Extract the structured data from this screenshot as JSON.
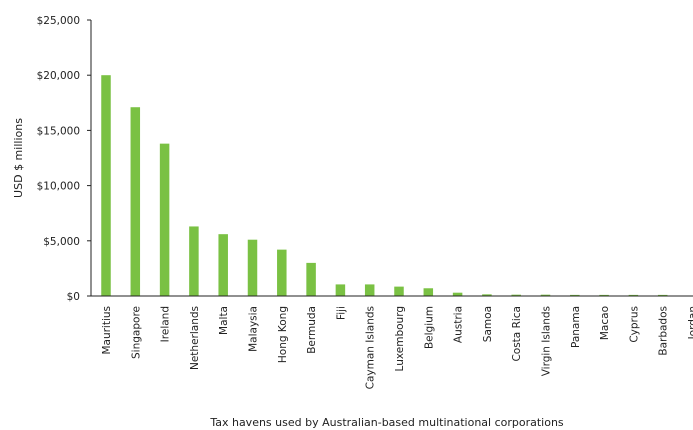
{
  "chart_data": {
    "type": "bar",
    "title": "",
    "xlabel": "Tax havens used by Australian-based multinational corporations",
    "ylabel": "USD $ millions",
    "ylim": [
      0,
      25000
    ],
    "y_ticks": [
      0,
      5000,
      10000,
      15000,
      20000,
      25000
    ],
    "y_tick_labels": [
      "$0",
      "$5,000",
      "$10,000",
      "$15,000",
      "$20,000",
      "$25,000"
    ],
    "grid": false,
    "legend": "none",
    "bar_color": "#7ac143",
    "axis_color": "#222222",
    "categories": [
      "Mauritius",
      "Singapore",
      "Ireland",
      "Netherlands",
      "Malta",
      "Malaysia",
      "Hong Kong",
      "Bermuda",
      "Fiji",
      "Cayman Islands",
      "Luxembourg",
      "Belgium",
      "Austria",
      "Samoa",
      "Costa Rica",
      "Virgin Islands",
      "Panama",
      "Macao",
      "Cyprus",
      "Barbados",
      "Jordan"
    ],
    "values": [
      20000,
      17100,
      13800,
      6300,
      5600,
      5100,
      4200,
      3000,
      1050,
      1050,
      850,
      700,
      300,
      150,
      120,
      120,
      100,
      100,
      100,
      100,
      0
    ]
  }
}
